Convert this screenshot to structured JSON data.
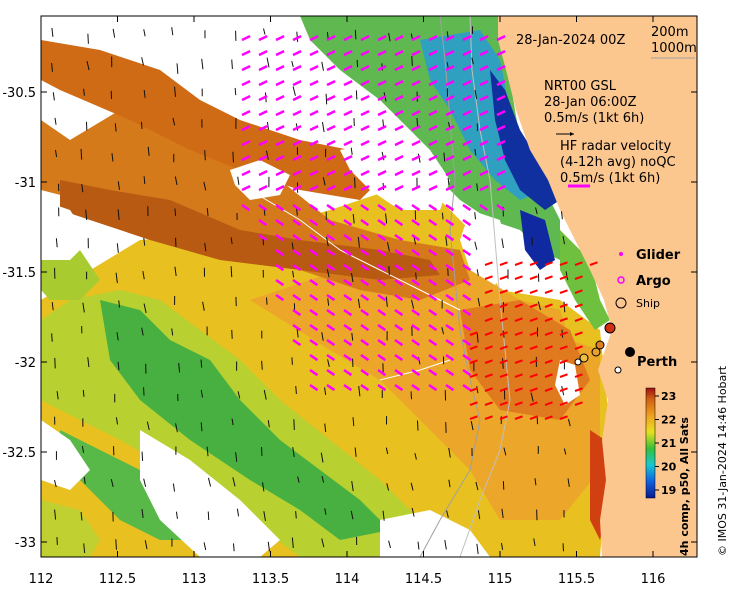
{
  "map": {
    "date_label": "28-Jan-2024 00Z",
    "depth_200": "200m",
    "depth_1000": "1000m",
    "model_label": "NRT00 GSL",
    "model_time": "28-Jan 06:00Z",
    "model_scale": "0.5m/s (1kt 6h)",
    "radar_title": "HF radar velocity",
    "radar_avg": "(4-12h avg) noQC",
    "radar_scale": "0.5m/s (1kt 6h)",
    "legend_glider": "Glider",
    "legend_argo": "Argo",
    "legend_ship": "Ship",
    "city": "Perth",
    "colorbar_title": "4h comp, p50, All Sats",
    "credit": "© IMOS 31-Jan-2024 14:46 Hobart",
    "lon_ticks": [
      "112",
      "112.5",
      "113",
      "113.5",
      "114",
      "114.5",
      "115",
      "115.5",
      "116"
    ],
    "lat_ticks": [
      "-30.5",
      "-31",
      "-31.5",
      "-32",
      "-32.5",
      "-33"
    ],
    "colorbar_ticks": [
      "23",
      "22",
      "21",
      "20",
      "19"
    ],
    "colors": {
      "land": "#fcc68f",
      "model_arrow": "#ff00ff",
      "radar_arrow": "#ff0000",
      "ship_marker": "#000000"
    }
  }
}
